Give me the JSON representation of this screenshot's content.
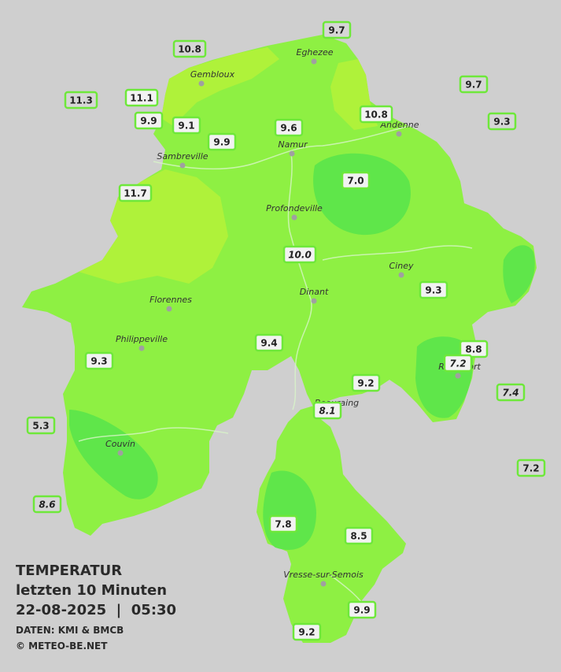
{
  "legend": {
    "title": "TEMPERATUR",
    "period": "letzten 10 Minuten",
    "datetime": "22-08-2025  |  05:30",
    "source": "DATEN: KMI & BMCB",
    "copyright": "© METEO-BE.NET"
  },
  "cities": [
    "Eghezee",
    "Gembloux",
    "Andenne",
    "Namur",
    "Sambreville",
    "Profondeville",
    "Ciney",
    "Dinant",
    "Florennes",
    "Philippeville",
    "Rochefort",
    "Beauraing",
    "Couvin",
    "Vresse-sur-Semois"
  ],
  "stations": [
    {
      "temp": "9.7",
      "italic": false
    },
    {
      "temp": "10.8",
      "italic": false
    },
    {
      "temp": "9.7",
      "italic": false
    },
    {
      "temp": "11.3",
      "italic": false
    },
    {
      "temp": "11.1",
      "italic": false
    },
    {
      "temp": "10.8",
      "italic": false
    },
    {
      "temp": "9.3",
      "italic": false
    },
    {
      "temp": "9.9",
      "italic": false
    },
    {
      "temp": "9.1",
      "italic": false
    },
    {
      "temp": "9.6",
      "italic": false
    },
    {
      "temp": "9.9",
      "italic": false
    },
    {
      "temp": "7.0",
      "italic": false
    },
    {
      "temp": "11.7",
      "italic": false
    },
    {
      "temp": "10.0",
      "italic": true
    },
    {
      "temp": "9.3",
      "italic": false
    },
    {
      "temp": "9.4",
      "italic": false
    },
    {
      "temp": "8.8",
      "italic": false
    },
    {
      "temp": "7.2",
      "italic": true
    },
    {
      "temp": "9.3",
      "italic": false
    },
    {
      "temp": "9.2",
      "italic": false
    },
    {
      "temp": "7.4",
      "italic": true
    },
    {
      "temp": "8.1",
      "italic": true
    },
    {
      "temp": "5.3",
      "italic": false
    },
    {
      "temp": "7.2",
      "italic": false
    },
    {
      "temp": "8.6",
      "italic": true
    },
    {
      "temp": "7.8",
      "italic": false
    },
    {
      "temp": "8.5",
      "italic": false
    },
    {
      "temp": "9.9",
      "italic": false
    },
    {
      "temp": "9.2",
      "italic": false
    }
  ]
}
